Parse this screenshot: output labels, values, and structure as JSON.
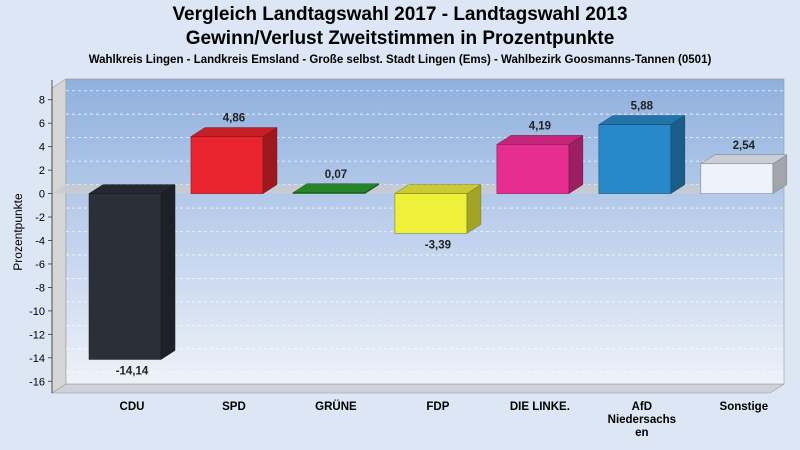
{
  "chart_data": {
    "type": "bar",
    "title": "Vergleich Landtagswahl 2017 - Landtagswahl 2013",
    "subtitle": "Gewinn/Verlust Zweitstimmen in Prozentpunkte",
    "caption": "Wahlkreis Lingen - Landkreis Emsland - Große selbst. Stadt Lingen (Ems) - Wahlbezirk Goosmanns-Tannen (0501)",
    "xlabel": "",
    "ylabel": "Prozentpunkte",
    "ylim": [
      -17,
      9
    ],
    "yticks": [
      8,
      6,
      4,
      2,
      0,
      -2,
      -4,
      -6,
      -8,
      -10,
      -12,
      -14,
      -16
    ],
    "grid": true,
    "categories": [
      [
        "CDU"
      ],
      [
        "SPD"
      ],
      [
        "GRÜNE"
      ],
      [
        "FDP"
      ],
      [
        "DIE LINKE."
      ],
      [
        "AfD",
        "Niedersachs",
        "en"
      ],
      [
        "Sonstige"
      ]
    ],
    "values": [
      -14.14,
      4.86,
      0.07,
      -3.39,
      4.19,
      5.88,
      2.54
    ],
    "value_labels": [
      "-14,14",
      "4,86",
      "0,07",
      "-3,39",
      "4,19",
      "5,88",
      "2,54"
    ],
    "colors": [
      "#2b2f38",
      "#e8252e",
      "#2e9a2e",
      "#eef03a",
      "#e62e90",
      "#2789c8",
      "#eef2fb"
    ]
  }
}
